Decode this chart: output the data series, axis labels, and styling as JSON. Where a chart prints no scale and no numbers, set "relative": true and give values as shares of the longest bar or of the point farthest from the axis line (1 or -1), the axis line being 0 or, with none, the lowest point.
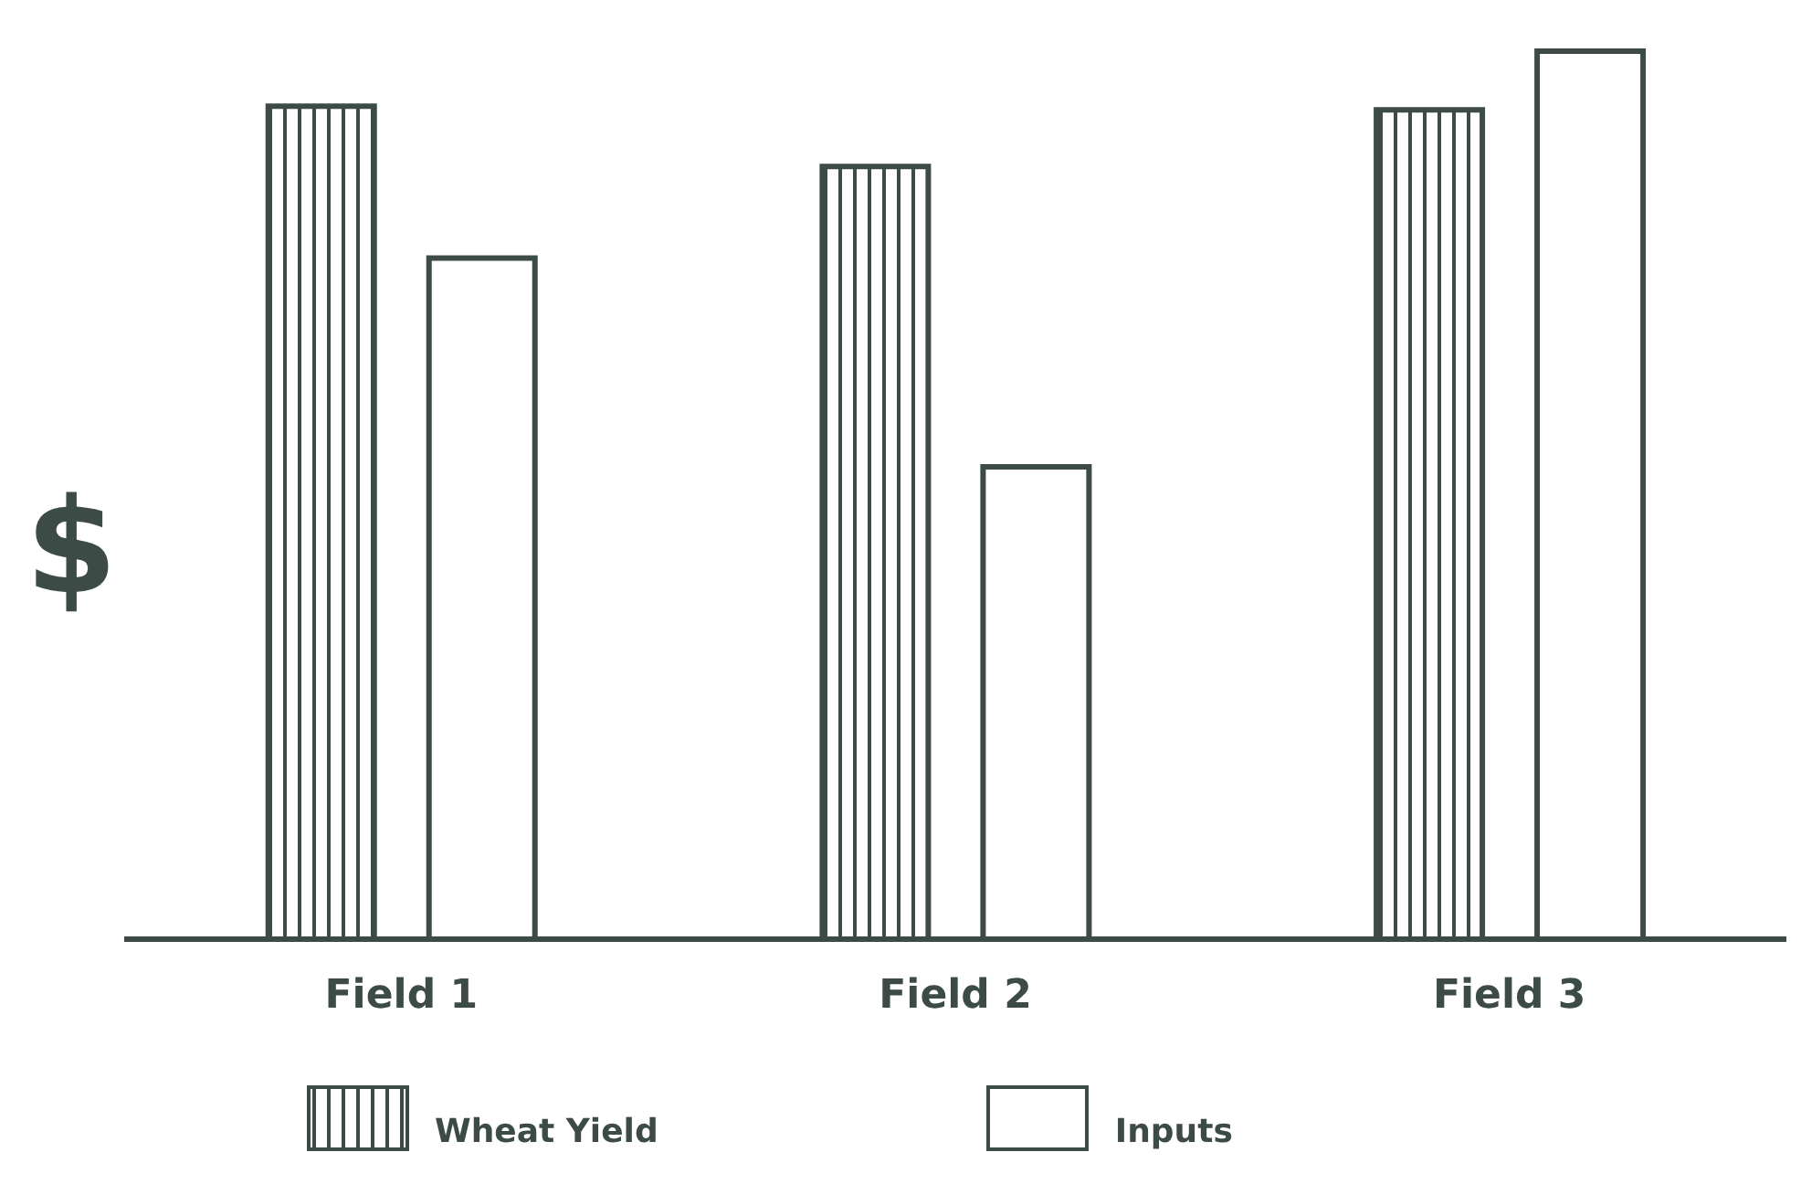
{
  "chart_data": {
    "type": "bar",
    "relative": true,
    "ylabel": "$",
    "categories": [
      "Field 1",
      "Field 2",
      "Field 3"
    ],
    "series": [
      {
        "name": "Wheat Yield",
        "color": "#3d4b47",
        "values": [
          0.938,
          0.87,
          0.934
        ]
      },
      {
        "name": "Inputs",
        "color": "#ffffff",
        "values": [
          0.767,
          0.532,
          1
        ]
      }
    ],
    "legend": "bottom",
    "grid": false
  }
}
